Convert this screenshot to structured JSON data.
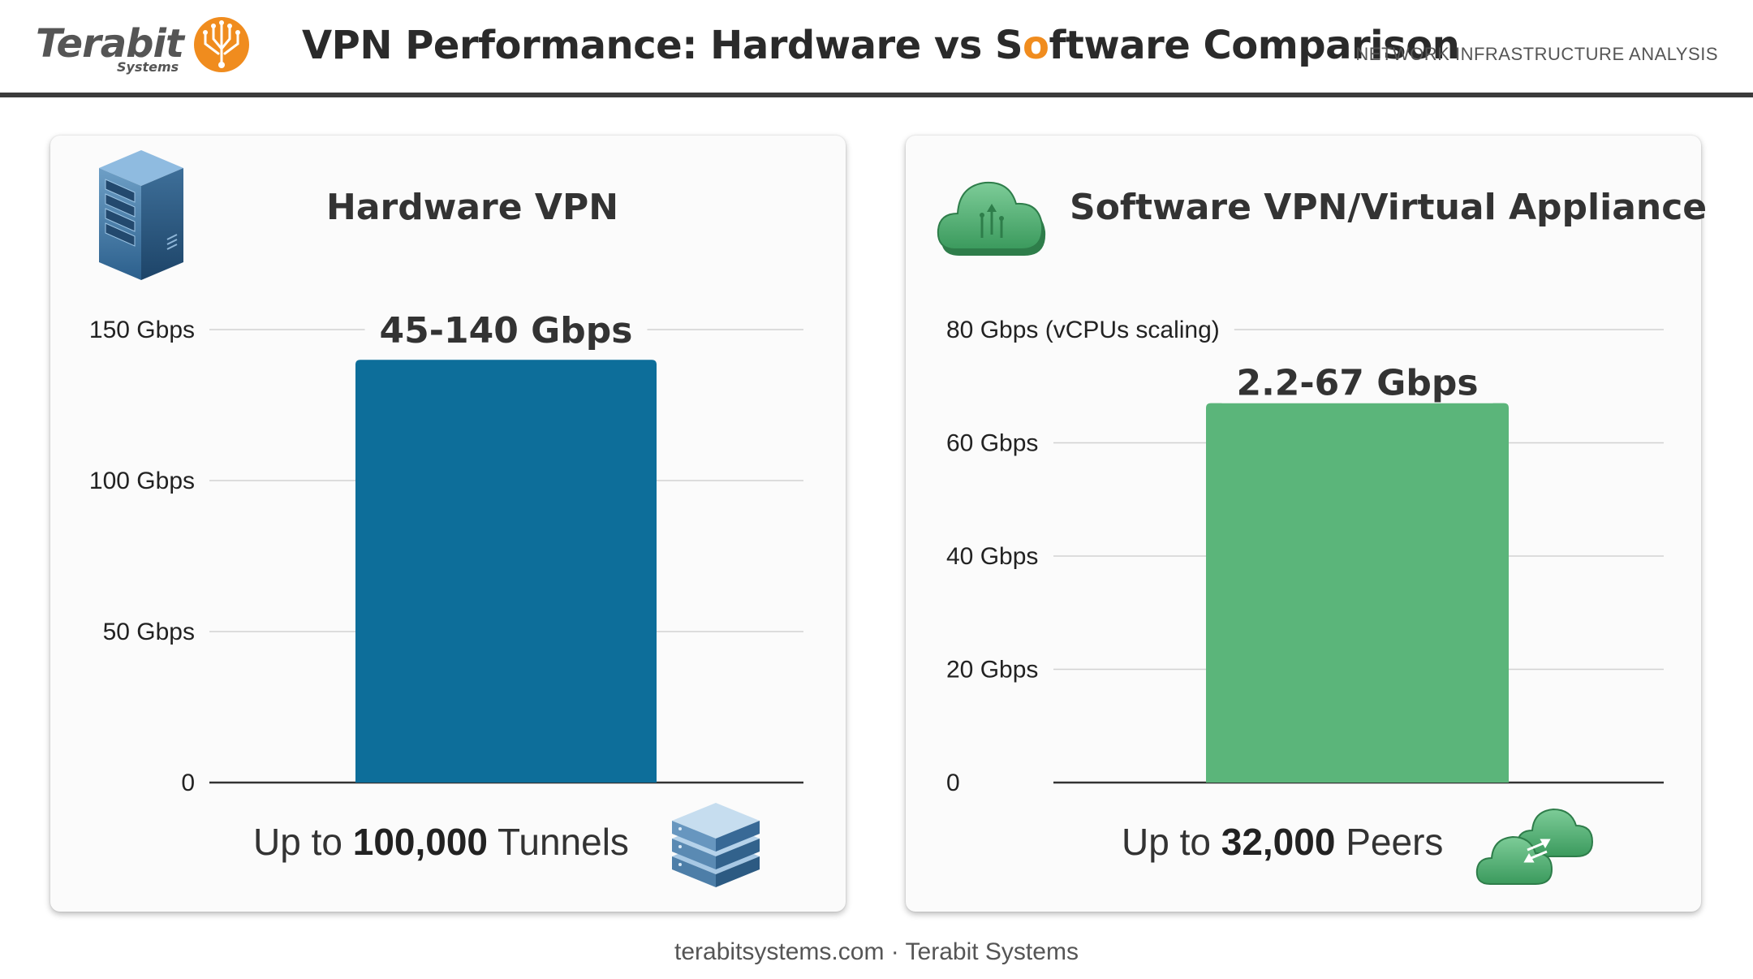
{
  "header": {
    "logo_word": "Terabit",
    "logo_sub": "Systems",
    "title_before": "VPN Performance: Hardware vs S",
    "title_accent": "o",
    "title_after": "ftware Comparison",
    "section_label": "NETWORK INFRASTRUCTURE ANALYSIS"
  },
  "colors": {
    "hardware_bar": "#0d6e9a",
    "software_bar": "#5bb57a",
    "accent": "#f08c1e",
    "axis": "#333333",
    "grid": "#d2d2d2"
  },
  "panels": {
    "hardware": {
      "heading": "Hardware VPN",
      "icon": "server-tower-icon",
      "footer_prefix": "Up to ",
      "footer_value": "100,000",
      "footer_suffix": " Tunnels",
      "footer_icon": "stacked-servers-icon"
    },
    "software": {
      "heading": "Software VPN/Virtual Appliance",
      "icon": "cloud-icon",
      "footer_prefix": "Up to ",
      "footer_value": "32,000",
      "footer_suffix": " Peers",
      "footer_icon": "linked-clouds-icon"
    }
  },
  "chart_data": [
    {
      "type": "bar",
      "title": "Hardware VPN",
      "categories": [
        ""
      ],
      "values": [
        140
      ],
      "data_label": "45-140 Gbps",
      "ylim": [
        0,
        150
      ],
      "yticks": [
        {
          "value": 0,
          "label": "0"
        },
        {
          "value": 50,
          "label": "50 Gbps"
        },
        {
          "value": 100,
          "label": "100 Gbps"
        },
        {
          "value": 150,
          "label": "150 Gbps"
        }
      ],
      "grid": true,
      "color": "#0d6e9a"
    },
    {
      "type": "bar",
      "title": "Software VPN/Virtual Appliance",
      "categories": [
        ""
      ],
      "values": [
        67
      ],
      "data_label": "2.2-67 Gbps",
      "ylim": [
        0,
        80
      ],
      "yticks": [
        {
          "value": 0,
          "label": "0"
        },
        {
          "value": 20,
          "label": "20 Gbps"
        },
        {
          "value": 40,
          "label": "40 Gbps"
        },
        {
          "value": 60,
          "label": "60 Gbps"
        },
        {
          "value": 80,
          "label": "80 Gbps (vCPUs scaling)"
        }
      ],
      "grid": true,
      "color": "#5bb57a"
    }
  ],
  "credit": "terabitsystems.com · Terabit Systems"
}
